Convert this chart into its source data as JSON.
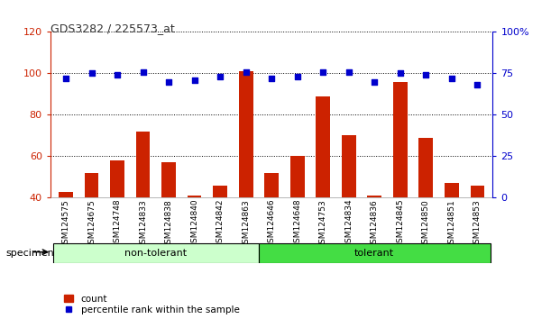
{
  "title": "GDS3282 / 225573_at",
  "categories": [
    "GSM124575",
    "GSM124675",
    "GSM124748",
    "GSM124833",
    "GSM124838",
    "GSM124840",
    "GSM124842",
    "GSM124863",
    "GSM124646",
    "GSM124648",
    "GSM124753",
    "GSM124834",
    "GSM124836",
    "GSM124845",
    "GSM124850",
    "GSM124851",
    "GSM124853"
  ],
  "count_values": [
    43,
    52,
    58,
    72,
    57,
    41,
    46,
    101,
    52,
    60,
    89,
    70,
    41,
    96,
    69,
    47,
    46
  ],
  "percentile_values": [
    72,
    75,
    74,
    76,
    70,
    71,
    73,
    76,
    72,
    73,
    76,
    76,
    70,
    75,
    74,
    72,
    68
  ],
  "groups": [
    {
      "label": "non-tolerant",
      "start": 0,
      "end": 7,
      "color": "#ccffcc"
    },
    {
      "label": "tolerant",
      "start": 8,
      "end": 16,
      "color": "#44dd44"
    }
  ],
  "ylim_left": [
    40,
    120
  ],
  "ylim_right": [
    0,
    100
  ],
  "yticks_left": [
    40,
    60,
    80,
    100,
    120
  ],
  "yticks_right": [
    0,
    25,
    50,
    75,
    100
  ],
  "bar_color": "#cc2200",
  "dot_color": "#0000cc",
  "background_color": "#ffffff",
  "legend_count_label": "count",
  "legend_percentile_label": "percentile rank within the sample",
  "specimen_label": "specimen",
  "title_color": "#333333",
  "axis_color_left": "#cc2200",
  "axis_color_right": "#0000cc"
}
